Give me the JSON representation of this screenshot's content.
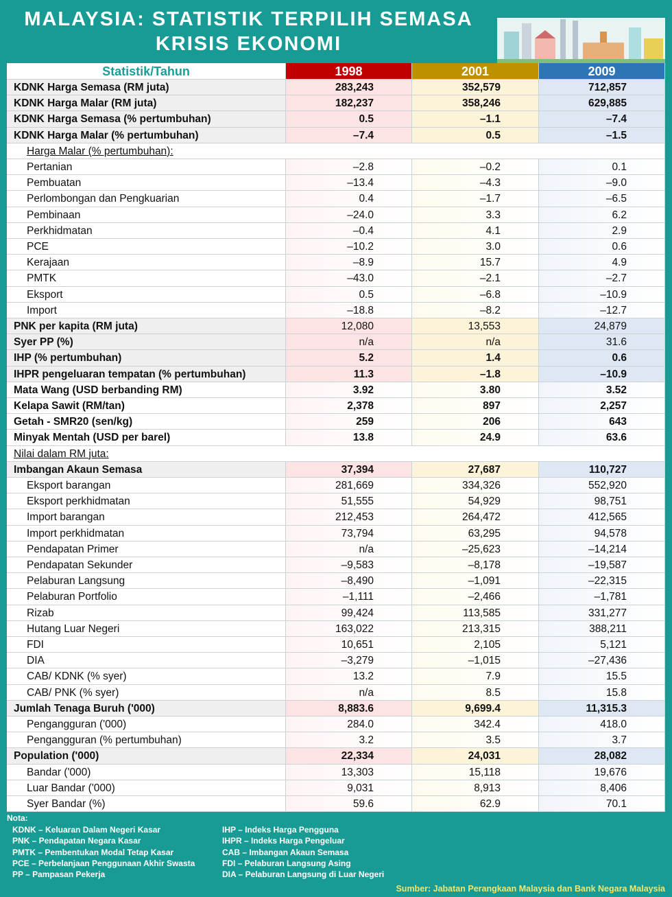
{
  "header": {
    "title": [
      "MALAYSIA: STATISTIK TERPILIH SEMASA",
      "KRISIS EKONOMI"
    ]
  },
  "table": {
    "columns": [
      "Statistik/Tahun",
      "1998",
      "2001",
      "2009"
    ],
    "rows": [
      [
        "KDNK Harga Semasa (RM juta)",
        "283,243",
        "352,579",
        "712,857"
      ],
      [
        "KDNK Harga Malar  (RM juta)",
        "182,237",
        "358,246",
        "629,885"
      ],
      [
        "KDNK Harga Semasa (% pertumbuhan)",
        "0.5",
        "–1.1",
        "–7.4"
      ],
      [
        "KDNK Harga Malar (% pertumbuhan)",
        "–7.4",
        "0.5",
        "–1.5"
      ],
      [
        "Harga Malar (% pertumbuhan):"
      ],
      [
        "Pertanian",
        "–2.8",
        "–0.2",
        "0.1"
      ],
      [
        "Pembuatan",
        "–13.4",
        "–4.3",
        "–9.0"
      ],
      [
        "Perlombongan dan Pengkuarian",
        "0.4",
        "–1.7",
        "–6.5"
      ],
      [
        "Pembinaan",
        "–24.0",
        "3.3",
        "6.2"
      ],
      [
        "Perkhidmatan",
        "–0.4",
        "4.1",
        "2.9"
      ],
      [
        "PCE",
        "–10.2",
        "3.0",
        "0.6"
      ],
      [
        "Kerajaan",
        "–8.9",
        "15.7",
        "4.9"
      ],
      [
        "PMTK",
        "–43.0",
        "–2.1",
        "–2.7"
      ],
      [
        "Eksport",
        "0.5",
        "–6.8",
        "–10.9"
      ],
      [
        "Import",
        "–18.8",
        "–8.2",
        "–12.7"
      ],
      [
        "PNK per kapita (RM juta)",
        "12,080",
        "13,553",
        "24,879"
      ],
      [
        "Syer PP (%)",
        "n/a",
        "n/a",
        "31.6"
      ],
      [
        "IHP (% pertumbuhan)",
        "5.2",
        "1.4",
        "0.6"
      ],
      [
        "IHPR pengeluaran tempatan (% pertumbuhan)",
        "11.3",
        "–1.8",
        "–10.9"
      ],
      [
        "Mata Wang (USD berbanding RM)",
        "3.92",
        "3.80",
        "3.52"
      ],
      [
        "Kelapa Sawit (RM/tan)",
        "2,378",
        "897",
        "2,257"
      ],
      [
        "Getah - SMR20 (sen/kg)",
        "259",
        "206",
        "643"
      ],
      [
        "Minyak Mentah (USD per barel)",
        "13.8",
        "24.9",
        "63.6"
      ],
      [
        "Nilai dalam RM juta:"
      ],
      [
        "Imbangan Akaun Semasa",
        "37,394",
        "27,687",
        "110,727"
      ],
      [
        "Eksport barangan",
        "281,669",
        "334,326",
        "552,920"
      ],
      [
        "Eksport perkhidmatan",
        "51,555",
        "54,929",
        "98,751"
      ],
      [
        "Import barangan",
        "212,453",
        "264,472",
        "412,565"
      ],
      [
        "Import  perkhidmatan",
        "73,794",
        "63,295",
        "94,578"
      ],
      [
        "Pendapatan Primer",
        "n/a",
        "–25,623",
        "–14,214"
      ],
      [
        "Pendapatan Sekunder",
        "–9,583",
        "–8,178",
        "–19,587"
      ],
      [
        "Pelaburan Langsung",
        "–8,490",
        "–1,091",
        "–22,315"
      ],
      [
        "Pelaburan Portfolio",
        "–1,111",
        "–2,466",
        "–1,781"
      ],
      [
        "Rizab",
        "99,424",
        "113,585",
        "331,277"
      ],
      [
        "Hutang Luar Negeri",
        "163,022",
        "213,315",
        "388,211"
      ],
      [
        "FDI",
        "10,651",
        "2,105",
        "5,121"
      ],
      [
        "DIA",
        "–3,279",
        "–1,015",
        "–27,436"
      ],
      [
        "CAB/ KDNK (% syer)",
        "13.2",
        "7.9",
        "15.5"
      ],
      [
        "CAB/ PNK (% syer)",
        "n/a",
        "8.5",
        "15.8"
      ],
      [
        "Jumlah Tenaga Buruh ('000)",
        "8,883.6",
        "9,699.4",
        "11,315.3"
      ],
      [
        "Pengangguran ('000)",
        "284.0",
        "342.4",
        "418.0"
      ],
      [
        "Pengangguran (% pertumbuhan)",
        "3.2",
        "3.5",
        "3.7"
      ],
      [
        "Population ('000)",
        "22,334",
        "24,031",
        "28,082"
      ],
      [
        "Bandar ('000)",
        "13,303",
        "15,118",
        "19,676"
      ],
      [
        "Luar Bandar ('000)",
        "9,031",
        "8,913",
        "8,406"
      ],
      [
        "Syer Bandar (%)",
        "59.6",
        "62.9",
        "70.1"
      ]
    ]
  },
  "notes": {
    "title": "Nota:",
    "left": [
      "KDNK – Keluaran Dalam Negeri Kasar",
      "PNK – Pendapatan Negara Kasar",
      "PMTK –  Pembentukan Modal Tetap Kasar",
      "PCE – Perbelanjaan Penggunaan Akhir Swasta",
      "PP – Pampasan Pekerja"
    ],
    "right": [
      "IHP – Indeks Harga Pengguna",
      "IHPR –  Indeks Harga Pengeluar",
      "CAB – Imbangan Akaun Semasa",
      "FDI – Pelaburan Langsung Asing",
      "DIA – Pelaburan Langsung di Luar Negeri"
    ]
  },
  "source": "Sumber: Jabatan Perangkaan  Malaysia dan Bank Negara Malaysia"
}
